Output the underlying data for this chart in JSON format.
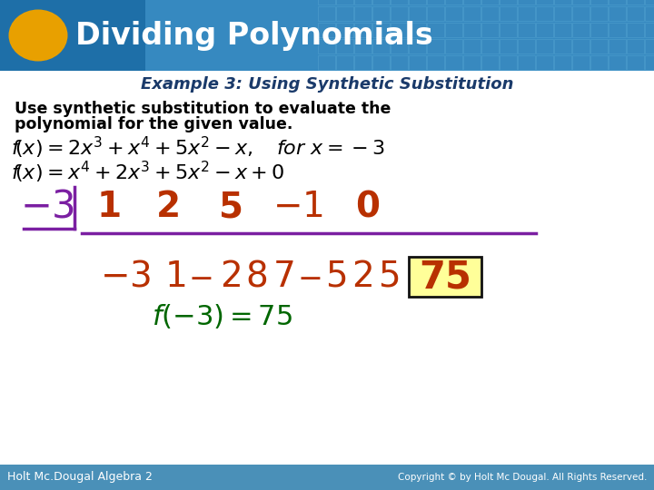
{
  "title": "Dividing Polynomials",
  "subtitle": "Example 3: Using Synthetic Substitution",
  "instruction_line1": "Use synthetic substitution to evaluate the",
  "instruction_line2": "polynomial for the given value.",
  "header_dark_blue": "#1e6fa8",
  "header_mid_blue": "#4a9fd4",
  "header_light_blue": "#7bbfe8",
  "grid_cell_color": "#3a8abf",
  "grid_border_color": "#5aaad4",
  "subtitle_color": "#1a3a6a",
  "body_bg": "#ffffff",
  "oval_color": "#e8a000",
  "header_text_color": "#ffffff",
  "instruction_color": "#000000",
  "orange_red": "#b83000",
  "dark_green": "#006600",
  "purple": "#7b1fa2",
  "yellow_box_bg": "#ffff99",
  "yellow_box_border": "#111111",
  "footer_bg": "#4a90b8",
  "footer_text_color": "#ffffff",
  "footer_left": "Holt Mc.Dougal Algebra 2",
  "footer_right": "Copyright © by Holt Mc Dougal. All Rights Reserved."
}
